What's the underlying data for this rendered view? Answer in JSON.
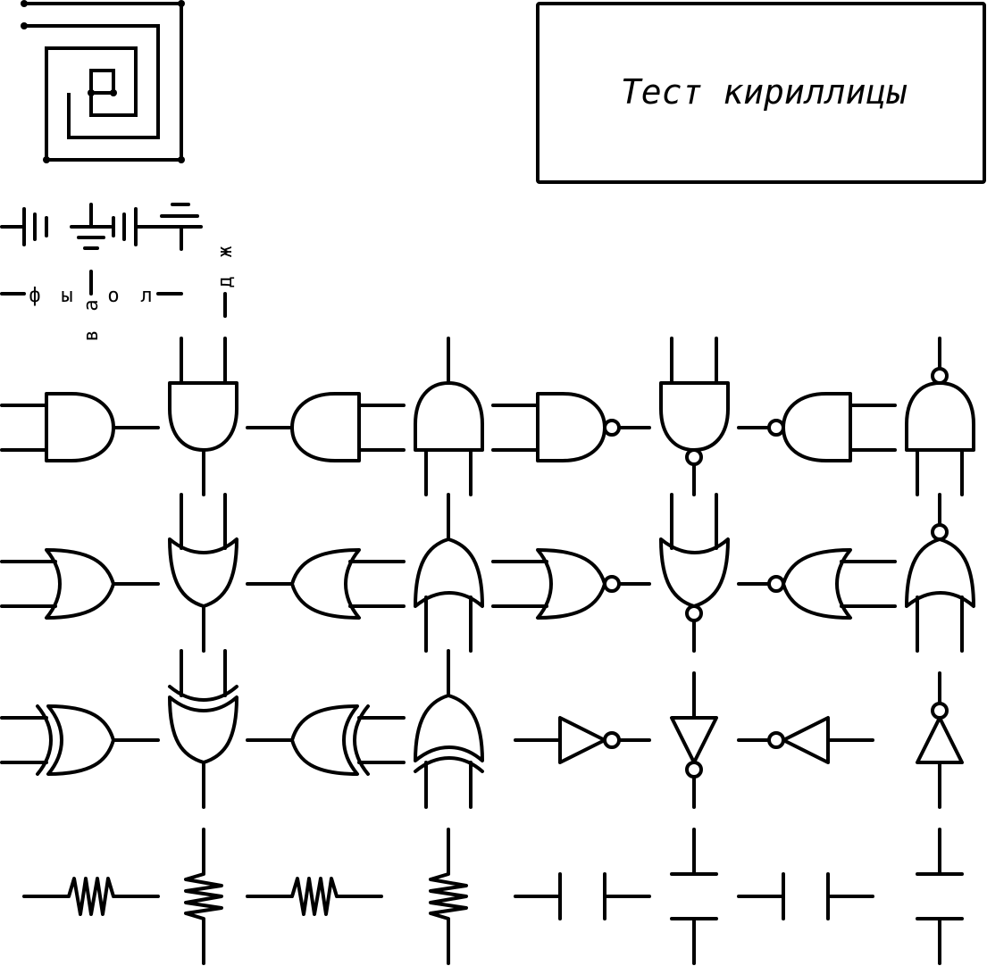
{
  "title_box": {
    "text": "Тест кириллицы"
  },
  "pin_labels": {
    "f": "ф",
    "y": "ы",
    "v": "в",
    "a": "а",
    "o": "о",
    "l": "л",
    "d": "д",
    "zh": "ж"
  }
}
